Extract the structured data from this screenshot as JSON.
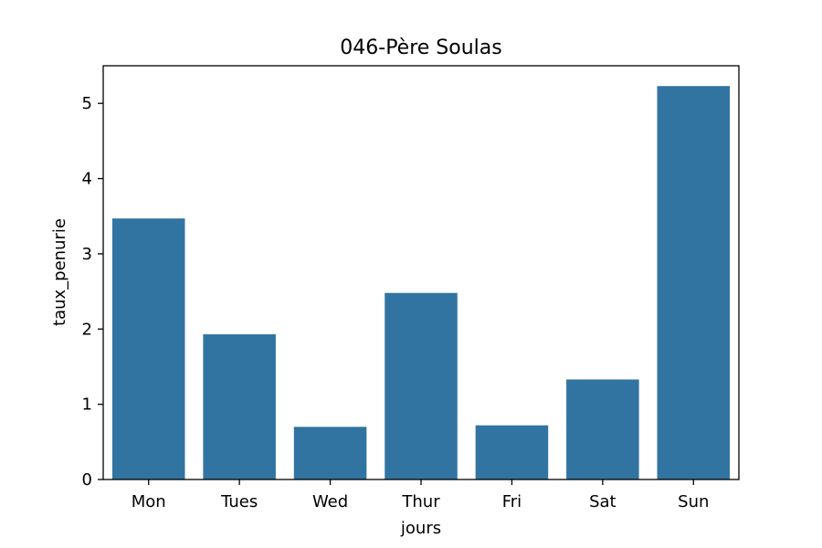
{
  "chart_data": {
    "type": "bar",
    "title": "046-Père Soulas",
    "xlabel": "jours",
    "ylabel": "taux_penurie",
    "categories": [
      "Mon",
      "Tues",
      "Wed",
      "Thur",
      "Fri",
      "Sat",
      "Sun"
    ],
    "values": [
      3.47,
      1.93,
      0.7,
      2.48,
      0.72,
      1.33,
      5.23
    ],
    "ylim": [
      0,
      5.5
    ],
    "yticks": [
      0,
      1,
      2,
      3,
      4,
      5
    ],
    "bar_color": "#3274a1",
    "grid": false,
    "legend": "none"
  }
}
